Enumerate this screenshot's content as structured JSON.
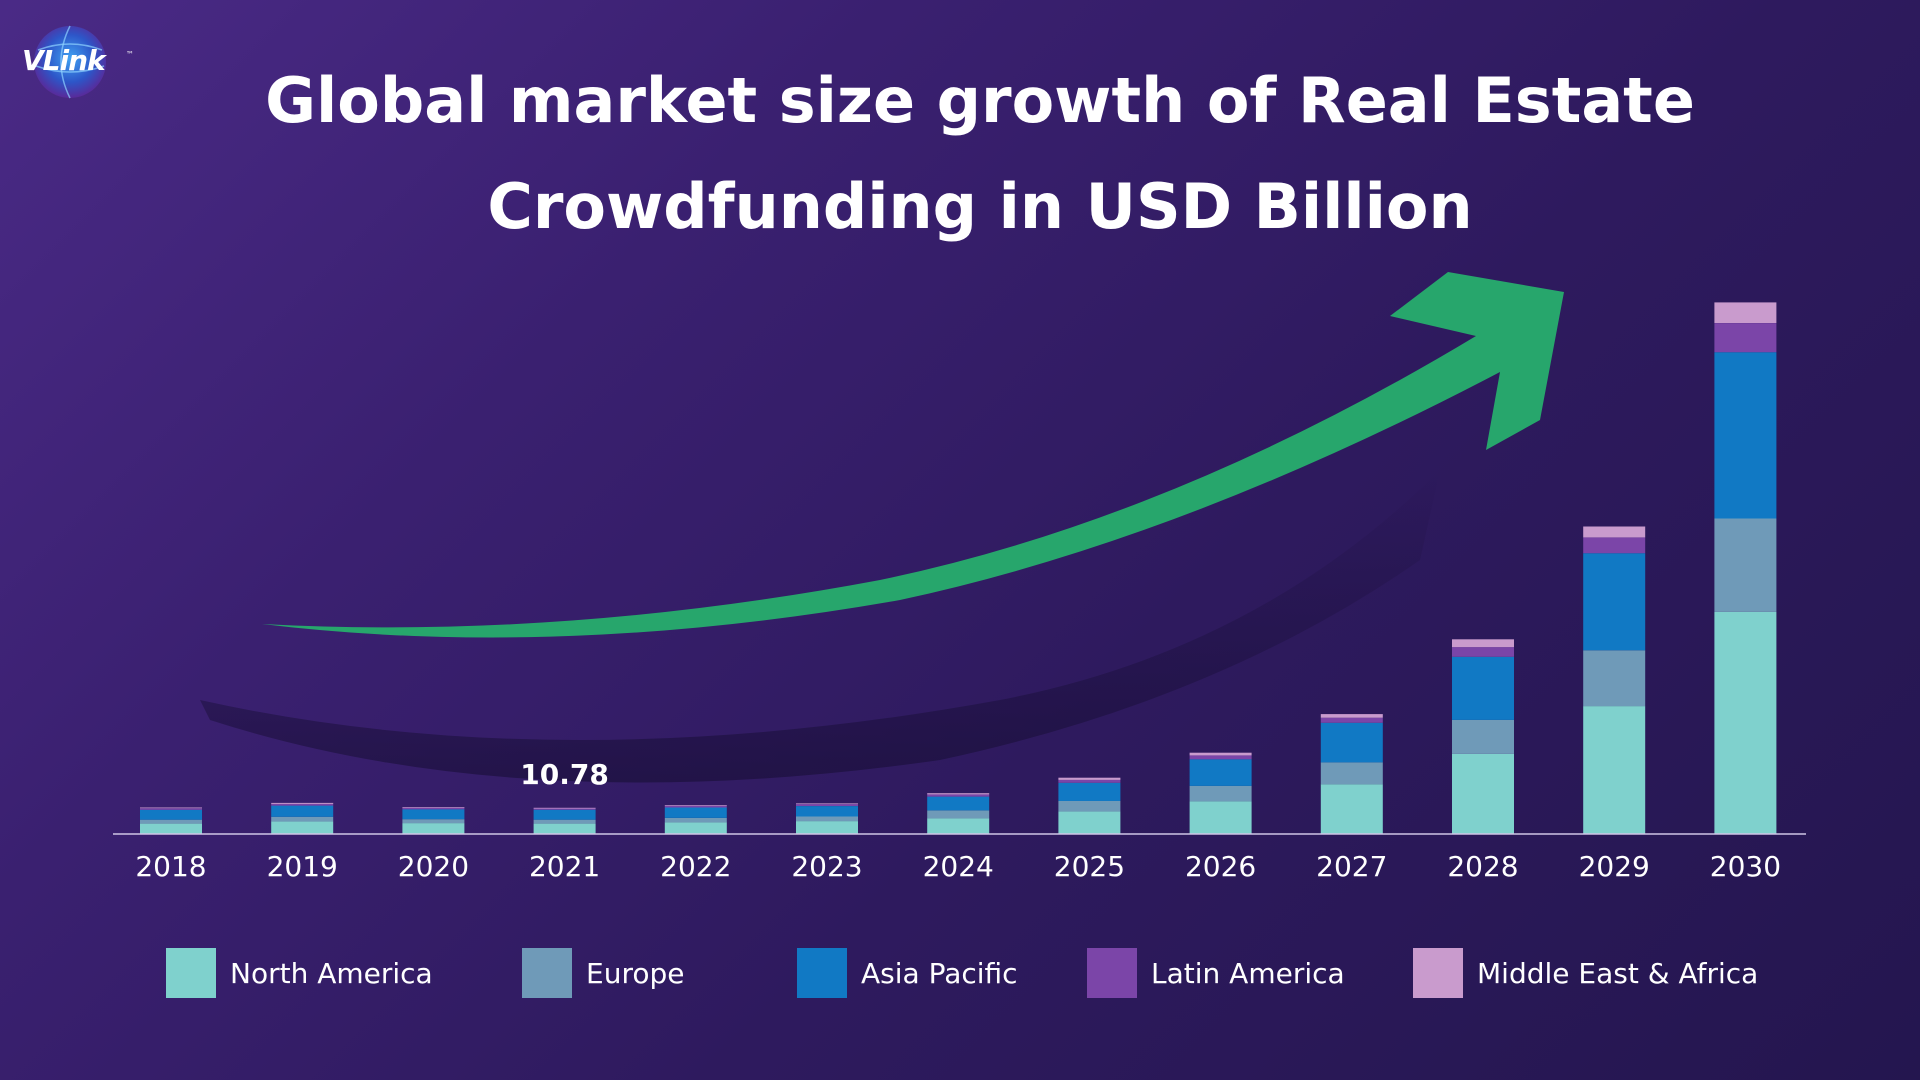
{
  "logo": {
    "text": "VLink",
    "tm": "™"
  },
  "chart_data": {
    "type": "bar",
    "stacked": true,
    "title": "Global market size growth of Real Estate Crowdfunding in USD Billion",
    "title_lines": [
      "Global market size growth of Real Estate",
      "Crowdfunding in USD Billion"
    ],
    "categories": [
      "2018",
      "2019",
      "2020",
      "2021",
      "2022",
      "2023",
      "2024",
      "2025",
      "2026",
      "2027",
      "2028",
      "2029",
      "2030"
    ],
    "series": [
      {
        "name": "North America",
        "color": "#7fd1cd",
        "values": [
          4.3,
          5.2,
          4.5,
          4.3,
          4.8,
          5.3,
          6.5,
          9.3,
          13.5,
          20.5,
          33,
          52.7,
          91.5
        ]
      },
      {
        "name": "Europe",
        "color": "#6f9ab8",
        "values": [
          1.6,
          1.9,
          1.6,
          1.6,
          1.8,
          1.9,
          3.2,
          4.3,
          6.3,
          9,
          14,
          23,
          38.5
        ]
      },
      {
        "name": "Asia Pacific",
        "color": "#1179c4",
        "values": [
          4.1,
          4.6,
          4.1,
          4.1,
          4.3,
          4.3,
          5.7,
          7.5,
          11,
          16.3,
          26,
          40,
          68.5
        ]
      },
      {
        "name": "Latin America",
        "color": "#7b45a8",
        "values": [
          0.6,
          0.7,
          0.6,
          0.5,
          0.7,
          0.8,
          0.9,
          1.2,
          1.6,
          2.1,
          4,
          6.5,
          12
        ]
      },
      {
        "name": "Middle East & Africa",
        "color": "#c99bcd",
        "values": [
          0.3,
          0.4,
          0.3,
          0.28,
          0.3,
          0.3,
          0.5,
          0.9,
          1.1,
          1.5,
          3.2,
          4.5,
          8.5
        ]
      }
    ],
    "annotations": [
      {
        "category": "2021",
        "text": "10.78"
      }
    ],
    "ylim": [
      0,
      220
    ],
    "grid": false,
    "legend_position": "bottom",
    "trend_arrow": true,
    "trend_arrow_color": "#27a66c"
  }
}
